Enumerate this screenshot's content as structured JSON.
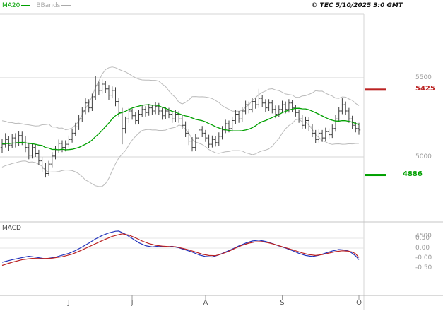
{
  "header": {
    "legend": [
      {
        "label": "MA20",
        "color": "#00a000"
      },
      {
        "label": "BBands",
        "color": "#aaaaaa"
      }
    ],
    "copyright": "© TEC 5/10/2025 3:0 GMT"
  },
  "price_axis": {
    "labels": [
      {
        "text": "5500",
        "value": 5500,
        "color": "#9a9a9a",
        "emph": false
      },
      {
        "text": "5425",
        "value": 5425,
        "color": "#bb2222",
        "emph": true
      },
      {
        "text": "5000",
        "value": 5000,
        "color": "#9a9a9a",
        "emph": false
      },
      {
        "text": "4886",
        "value": 4886,
        "color": "#00a000",
        "emph": true
      },
      {
        "text": "4500",
        "value": 4500,
        "color": "#9a9a9a",
        "emph": false
      }
    ]
  },
  "macd_panel": {
    "label": "MACD",
    "ticks": [
      "0.50",
      "0.00",
      "-0.00",
      "-0.50"
    ]
  },
  "chart_data": {
    "type": "candlestick",
    "title": "",
    "price_gridlines": [
      5500,
      5000
    ],
    "ylim": [
      4600,
      5900
    ],
    "months": [
      {
        "label": "J",
        "start_index": 20
      },
      {
        "label": "J",
        "start_index": 39
      },
      {
        "label": "A",
        "start_index": 61
      },
      {
        "label": "S",
        "start_index": 84
      },
      {
        "label": "O",
        "start_index": 107
      }
    ],
    "levels": {
      "resistance": {
        "value": 5425,
        "color": "#bb2222"
      },
      "support": {
        "value": 4886,
        "color": "#00a000"
      }
    },
    "overlays": {
      "ma20": {
        "period": 20,
        "color": "#00a000"
      },
      "bbands": {
        "period": 20,
        "stddev": 2,
        "color": "#bbbbbb"
      }
    },
    "indicator_warmup_closes": [
      4980,
      5160,
      5020,
      5180,
      5040,
      5140,
      4990,
      5150
    ],
    "ohlc": [
      [
        5060,
        5115,
        5025,
        5080
      ],
      [
        5080,
        5150,
        5060,
        5110
      ],
      [
        5110,
        5130,
        5040,
        5075
      ],
      [
        5075,
        5145,
        5055,
        5120
      ],
      [
        5120,
        5150,
        5060,
        5090
      ],
      [
        5090,
        5165,
        5070,
        5135
      ],
      [
        5135,
        5160,
        5075,
        5100
      ],
      [
        5100,
        5130,
        5030,
        5060
      ],
      [
        5060,
        5090,
        4985,
        5010
      ],
      [
        5010,
        5085,
        4990,
        5060
      ],
      [
        5060,
        5080,
        5000,
        5020
      ],
      [
        5020,
        5045,
        4950,
        4975
      ],
      [
        4975,
        5000,
        4905,
        4930
      ],
      [
        4930,
        4960,
        4870,
        4895
      ],
      [
        4895,
        4975,
        4880,
        4955
      ],
      [
        4955,
        5030,
        4935,
        5005
      ],
      [
        5005,
        5070,
        4985,
        5045
      ],
      [
        5045,
        5110,
        5025,
        5085
      ],
      [
        5085,
        5105,
        5030,
        5060
      ],
      [
        5060,
        5105,
        5035,
        5080
      ],
      [
        5080,
        5135,
        5060,
        5110
      ],
      [
        5110,
        5175,
        5090,
        5150
      ],
      [
        5150,
        5215,
        5130,
        5190
      ],
      [
        5190,
        5265,
        5170,
        5240
      ],
      [
        5240,
        5315,
        5220,
        5290
      ],
      [
        5290,
        5370,
        5270,
        5340
      ],
      [
        5340,
        5365,
        5280,
        5310
      ],
      [
        5310,
        5400,
        5290,
        5380
      ],
      [
        5380,
        5510,
        5360,
        5450
      ],
      [
        5450,
        5475,
        5390,
        5420
      ],
      [
        5420,
        5490,
        5400,
        5460
      ],
      [
        5460,
        5480,
        5405,
        5430
      ],
      [
        5430,
        5455,
        5360,
        5390
      ],
      [
        5390,
        5445,
        5370,
        5420
      ],
      [
        5420,
        5440,
        5320,
        5350
      ],
      [
        5350,
        5375,
        5255,
        5280
      ],
      [
        5280,
        5310,
        5080,
        5180
      ],
      [
        5180,
        5255,
        5150,
        5240
      ],
      [
        5240,
        5310,
        5215,
        5290
      ],
      [
        5290,
        5305,
        5235,
        5260
      ],
      [
        5260,
        5285,
        5205,
        5230
      ],
      [
        5230,
        5295,
        5210,
        5270
      ],
      [
        5270,
        5325,
        5250,
        5300
      ],
      [
        5300,
        5320,
        5255,
        5280
      ],
      [
        5280,
        5335,
        5260,
        5310
      ],
      [
        5310,
        5330,
        5265,
        5290
      ],
      [
        5290,
        5345,
        5270,
        5320
      ],
      [
        5320,
        5340,
        5265,
        5290
      ],
      [
        5290,
        5310,
        5235,
        5260
      ],
      [
        5260,
        5315,
        5240,
        5290
      ],
      [
        5290,
        5310,
        5245,
        5270
      ],
      [
        5270,
        5290,
        5215,
        5240
      ],
      [
        5240,
        5295,
        5220,
        5270
      ],
      [
        5270,
        5290,
        5215,
        5240
      ],
      [
        5240,
        5265,
        5175,
        5200
      ],
      [
        5200,
        5225,
        5125,
        5150
      ],
      [
        5150,
        5175,
        5075,
        5100
      ],
      [
        5100,
        5125,
        5035,
        5060
      ],
      [
        5060,
        5145,
        5040,
        5120
      ],
      [
        5120,
        5195,
        5100,
        5170
      ],
      [
        5170,
        5195,
        5125,
        5150
      ],
      [
        5150,
        5170,
        5095,
        5120
      ],
      [
        5120,
        5140,
        5055,
        5080
      ],
      [
        5080,
        5135,
        5060,
        5110
      ],
      [
        5110,
        5130,
        5065,
        5090
      ],
      [
        5090,
        5155,
        5070,
        5130
      ],
      [
        5130,
        5195,
        5110,
        5170
      ],
      [
        5170,
        5235,
        5150,
        5210
      ],
      [
        5210,
        5230,
        5155,
        5180
      ],
      [
        5180,
        5255,
        5160,
        5230
      ],
      [
        5230,
        5295,
        5210,
        5270
      ],
      [
        5270,
        5290,
        5215,
        5240
      ],
      [
        5240,
        5315,
        5220,
        5290
      ],
      [
        5290,
        5355,
        5270,
        5330
      ],
      [
        5330,
        5350,
        5275,
        5300
      ],
      [
        5300,
        5375,
        5280,
        5350
      ],
      [
        5350,
        5370,
        5305,
        5330
      ],
      [
        5330,
        5430,
        5310,
        5370
      ],
      [
        5370,
        5390,
        5315,
        5340
      ],
      [
        5340,
        5365,
        5285,
        5310
      ],
      [
        5310,
        5365,
        5290,
        5340
      ],
      [
        5340,
        5360,
        5275,
        5300
      ],
      [
        5300,
        5325,
        5245,
        5270
      ],
      [
        5270,
        5325,
        5250,
        5300
      ],
      [
        5300,
        5355,
        5280,
        5330
      ],
      [
        5330,
        5350,
        5275,
        5300
      ],
      [
        5300,
        5365,
        5280,
        5340
      ],
      [
        5340,
        5360,
        5285,
        5310
      ],
      [
        5310,
        5330,
        5255,
        5280
      ],
      [
        5280,
        5300,
        5215,
        5240
      ],
      [
        5240,
        5265,
        5175,
        5200
      ],
      [
        5200,
        5255,
        5180,
        5230
      ],
      [
        5230,
        5250,
        5165,
        5190
      ],
      [
        5190,
        5210,
        5125,
        5150
      ],
      [
        5150,
        5170,
        5085,
        5110
      ],
      [
        5110,
        5175,
        5090,
        5150
      ],
      [
        5150,
        5170,
        5095,
        5120
      ],
      [
        5120,
        5185,
        5100,
        5160
      ],
      [
        5160,
        5180,
        5115,
        5140
      ],
      [
        5140,
        5205,
        5120,
        5180
      ],
      [
        5180,
        5265,
        5160,
        5240
      ],
      [
        5240,
        5315,
        5220,
        5290
      ],
      [
        5290,
        5370,
        5270,
        5330
      ],
      [
        5330,
        5350,
        5265,
        5290
      ],
      [
        5290,
        5310,
        5215,
        5240
      ],
      [
        5240,
        5260,
        5175,
        5200
      ],
      [
        5200,
        5220,
        5155,
        5180
      ],
      [
        5180,
        5215,
        5140,
        5170
      ]
    ],
    "macd": {
      "line_color": "#2233bb",
      "signal_color": "#bb2222",
      "line": [
        [
          0,
          -0.6
        ],
        [
          3,
          -0.48
        ],
        [
          6,
          -0.38
        ],
        [
          8,
          -0.32
        ],
        [
          10,
          -0.36
        ],
        [
          13,
          -0.44
        ],
        [
          16,
          -0.36
        ],
        [
          18,
          -0.27
        ],
        [
          20,
          -0.18
        ],
        [
          22,
          -0.05
        ],
        [
          24,
          0.12
        ],
        [
          26,
          0.3
        ],
        [
          28,
          0.5
        ],
        [
          30,
          0.66
        ],
        [
          32,
          0.78
        ],
        [
          34,
          0.86
        ],
        [
          35,
          0.87
        ],
        [
          37,
          0.72
        ],
        [
          39,
          0.52
        ],
        [
          41,
          0.32
        ],
        [
          43,
          0.18
        ],
        [
          45,
          0.12
        ],
        [
          47,
          0.16
        ],
        [
          49,
          0.12
        ],
        [
          51,
          0.15
        ],
        [
          53,
          0.08
        ],
        [
          55,
          -0.02
        ],
        [
          57,
          -0.12
        ],
        [
          59,
          -0.25
        ],
        [
          61,
          -0.33
        ],
        [
          63,
          -0.35
        ],
        [
          65,
          -0.25
        ],
        [
          67,
          -0.12
        ],
        [
          69,
          0.02
        ],
        [
          71,
          0.17
        ],
        [
          73,
          0.3
        ],
        [
          75,
          0.4
        ],
        [
          77,
          0.44
        ],
        [
          79,
          0.38
        ],
        [
          81,
          0.28
        ],
        [
          83,
          0.17
        ],
        [
          85,
          0.07
        ],
        [
          87,
          -0.05
        ],
        [
          89,
          -0.18
        ],
        [
          91,
          -0.28
        ],
        [
          93,
          -0.33
        ],
        [
          95,
          -0.27
        ],
        [
          97,
          -0.17
        ],
        [
          99,
          -0.07
        ],
        [
          101,
          0.0
        ],
        [
          103,
          -0.03
        ],
        [
          104,
          -0.08
        ],
        [
          105,
          -0.18
        ],
        [
          106,
          -0.3
        ],
        [
          107,
          -0.48
        ]
      ],
      "signal": [
        [
          0,
          -0.75
        ],
        [
          3,
          -0.6
        ],
        [
          6,
          -0.48
        ],
        [
          9,
          -0.42
        ],
        [
          12,
          -0.43
        ],
        [
          15,
          -0.41
        ],
        [
          18,
          -0.34
        ],
        [
          21,
          -0.22
        ],
        [
          24,
          -0.02
        ],
        [
          27,
          0.2
        ],
        [
          30,
          0.42
        ],
        [
          33,
          0.62
        ],
        [
          36,
          0.74
        ],
        [
          38,
          0.68
        ],
        [
          40,
          0.55
        ],
        [
          42,
          0.4
        ],
        [
          44,
          0.28
        ],
        [
          46,
          0.2
        ],
        [
          48,
          0.16
        ],
        [
          50,
          0.14
        ],
        [
          52,
          0.13
        ],
        [
          54,
          0.06
        ],
        [
          56,
          -0.02
        ],
        [
          58,
          -0.12
        ],
        [
          60,
          -0.22
        ],
        [
          62,
          -0.28
        ],
        [
          64,
          -0.29
        ],
        [
          66,
          -0.2
        ],
        [
          68,
          -0.08
        ],
        [
          70,
          0.07
        ],
        [
          72,
          0.2
        ],
        [
          74,
          0.3
        ],
        [
          76,
          0.36
        ],
        [
          78,
          0.37
        ],
        [
          80,
          0.31
        ],
        [
          82,
          0.23
        ],
        [
          84,
          0.13
        ],
        [
          86,
          0.04
        ],
        [
          88,
          -0.06
        ],
        [
          90,
          -0.16
        ],
        [
          92,
          -0.24
        ],
        [
          94,
          -0.28
        ],
        [
          96,
          -0.24
        ],
        [
          98,
          -0.17
        ],
        [
          100,
          -0.1
        ],
        [
          102,
          -0.06
        ],
        [
          104,
          -0.08
        ],
        [
          105,
          -0.12
        ],
        [
          106,
          -0.2
        ],
        [
          107,
          -0.38
        ]
      ]
    }
  }
}
